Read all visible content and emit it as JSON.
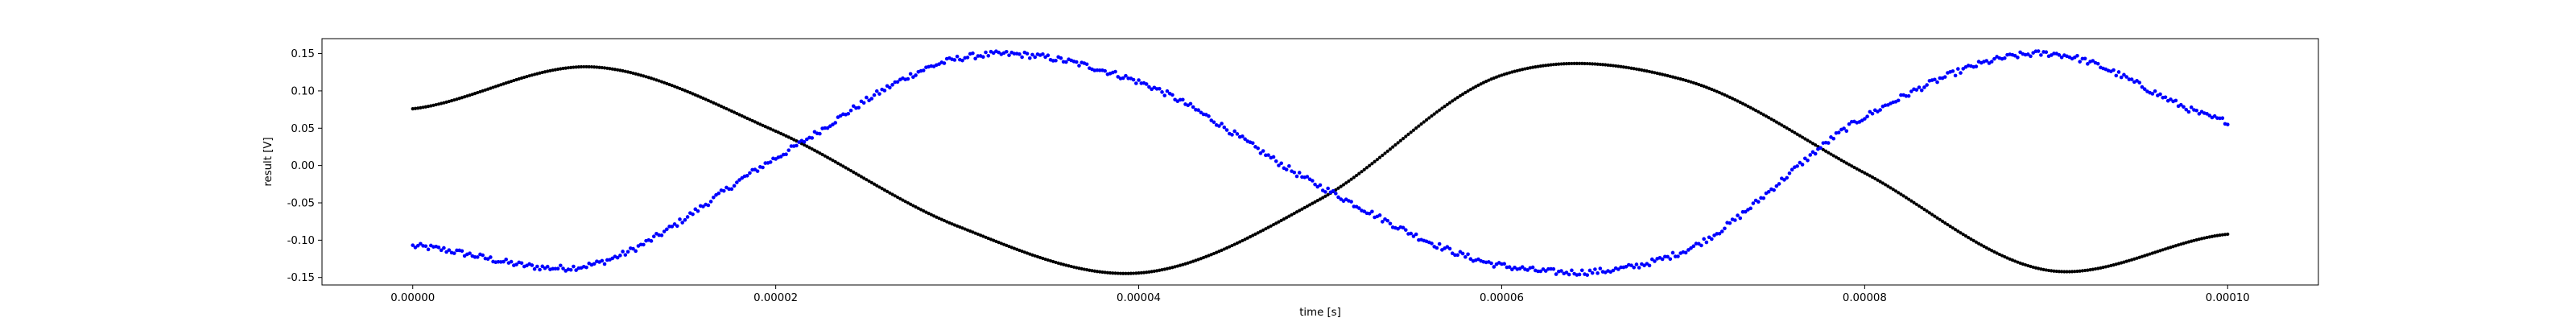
{
  "chart_data": {
    "type": "scatter",
    "title": "",
    "xlabel": "time [s]",
    "ylabel": "result [V]",
    "xlim": [
      -5e-06,
      0.000105
    ],
    "ylim": [
      -0.16,
      0.17
    ],
    "x_ticks": [
      "0.00000",
      "0.00002",
      "0.00004",
      "0.00006",
      "0.00008",
      "0.00010"
    ],
    "y_ticks": [
      "-0.15",
      "-0.10",
      "-0.05",
      "0.00",
      "0.05",
      "0.10",
      "0.15"
    ],
    "grid": false,
    "legend": "none",
    "series": [
      {
        "color": "#000000",
        "x": [
          0,
          1e-05,
          2e-05,
          3e-05,
          4e-05,
          5e-05,
          6e-05,
          7e-05,
          8e-05,
          9e-05,
          0.0001
        ],
        "values": [
          0.076,
          0.132,
          0.046,
          -0.081,
          -0.144,
          -0.045,
          0.121,
          0.115,
          -0.01,
          -0.14,
          -0.092
        ]
      },
      {
        "color": "#0000ff",
        "x": [
          0,
          1e-05,
          2e-05,
          3e-05,
          4e-05,
          5e-05,
          6e-05,
          7e-05,
          8e-05,
          9e-05,
          0.0001
        ],
        "values": [
          -0.108,
          -0.132,
          0.01,
          0.143,
          0.112,
          -0.028,
          -0.134,
          -0.115,
          0.065,
          0.15,
          0.059
        ]
      }
    ]
  }
}
